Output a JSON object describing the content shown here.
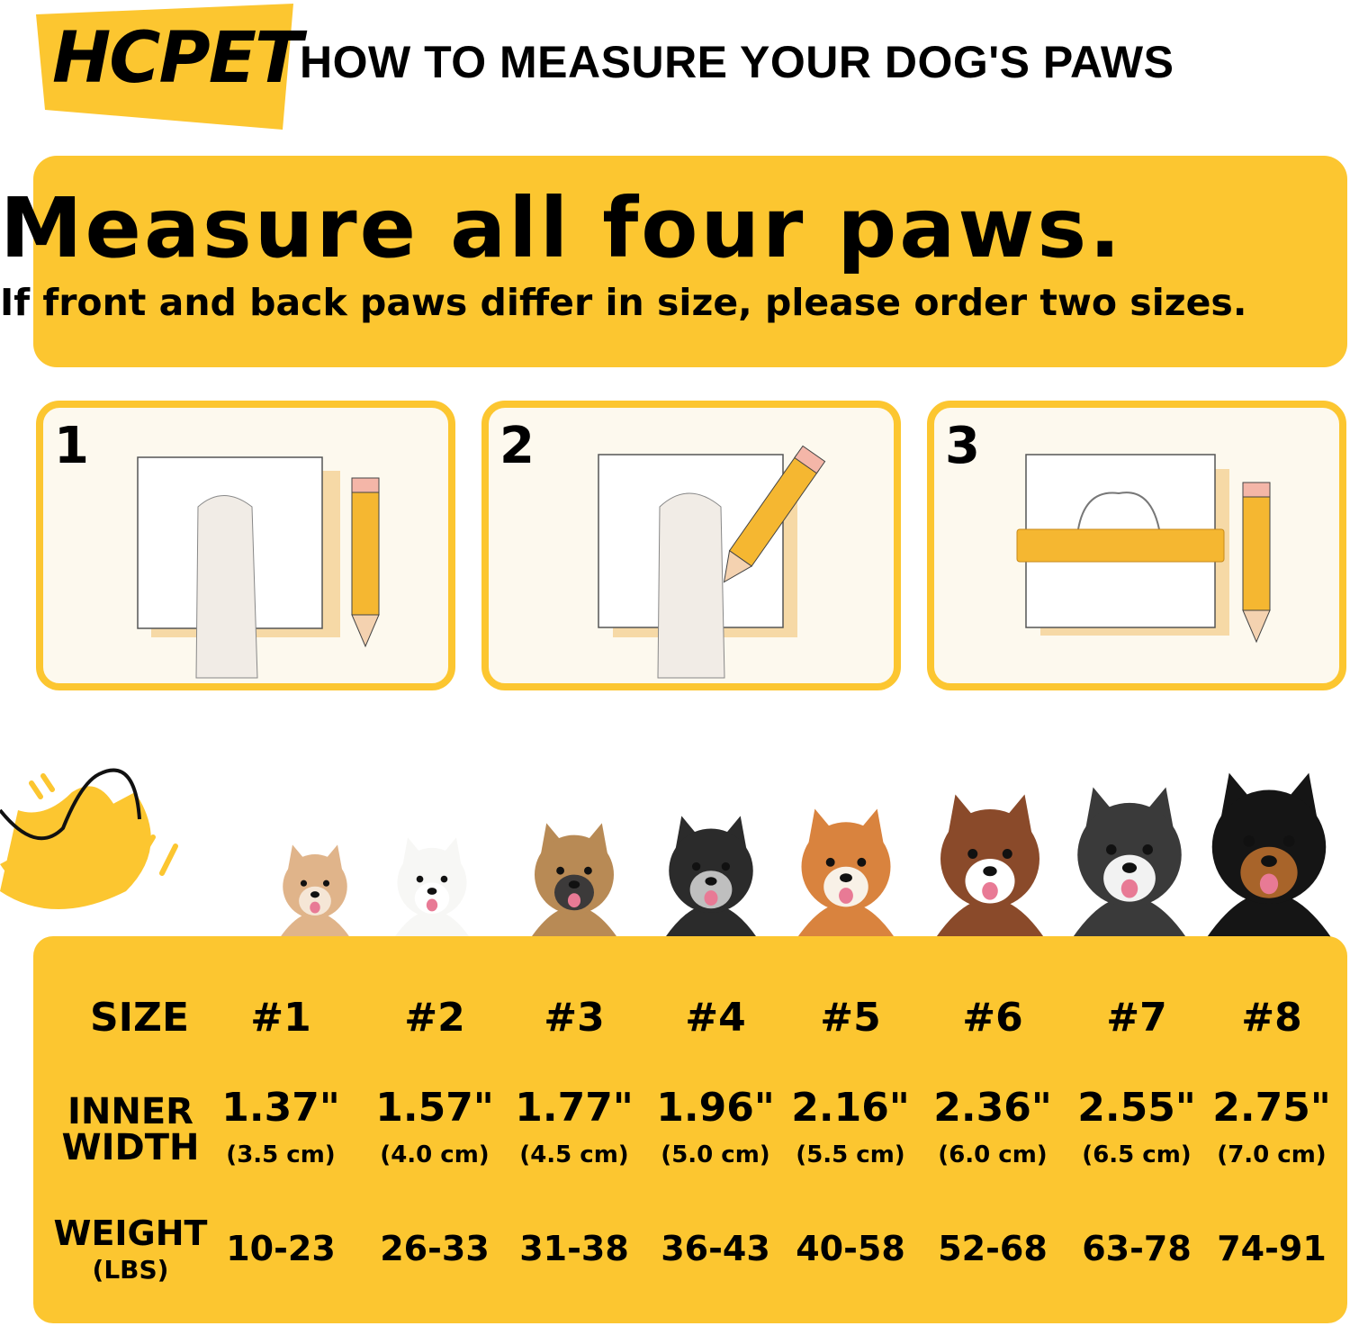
{
  "brand": {
    "logo_text": "HCPET",
    "accent_color": "#fcc630"
  },
  "header": {
    "title": "HOW TO MEASURE YOUR DOG'S PAWS"
  },
  "banner": {
    "headline": "Measure all four paws.",
    "subline": "If front and back paws differ in size, please order two sizes."
  },
  "steps": [
    {
      "number": "1",
      "icon": "paw-on-paper-with-pencil"
    },
    {
      "number": "2",
      "icon": "trace-paw-with-pencil"
    },
    {
      "number": "3",
      "icon": "measure-outline-with-ruler"
    }
  ],
  "dogs": [
    "chihuahua",
    "bichon",
    "yorkshire-terrier",
    "schnauzer",
    "shiba-inu",
    "australian-shepherd",
    "husky",
    "rottweiler"
  ],
  "table": {
    "size_label": "SIZE",
    "inner_width_label": [
      "INNER",
      "WIDTH"
    ],
    "weight_label": "WEIGHT",
    "weight_unit": "(LBS)",
    "sizes": [
      "#1",
      "#2",
      "#3",
      "#4",
      "#5",
      "#6",
      "#7",
      "#8"
    ],
    "inner_width_in": [
      "1.37\"",
      "1.57\"",
      "1.77\"",
      "1.96\"",
      "2.16\"",
      "2.36\"",
      "2.55\"",
      "2.75\""
    ],
    "inner_width_cm": [
      "(3.5 cm)",
      "(4.0 cm)",
      "(4.5 cm)",
      "(5.0 cm)",
      "(5.5 cm)",
      "(6.0 cm)",
      "(6.5 cm)",
      "(7.0 cm)"
    ],
    "weight": [
      "10-23",
      "26-33",
      "31-38",
      "36-43",
      "40-58",
      "52-68",
      "63-78",
      "74-91"
    ]
  }
}
